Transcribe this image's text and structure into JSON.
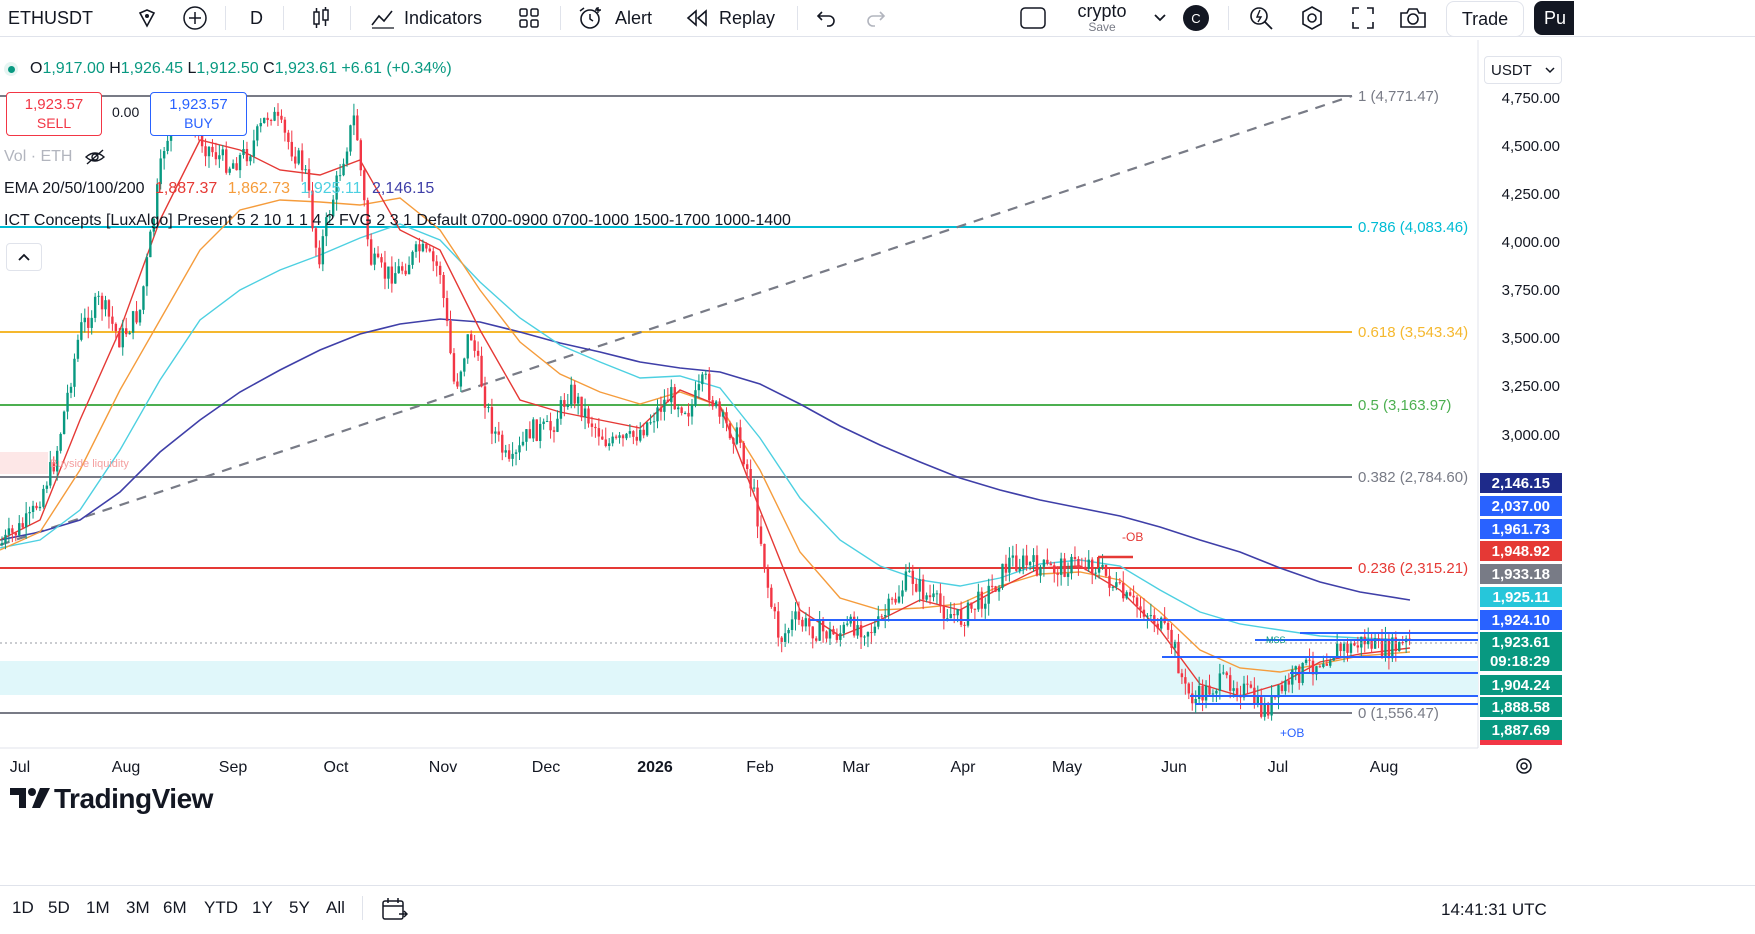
{
  "toolbar": {
    "symbol": "ETHUSDT",
    "interval": "D",
    "indicators_label": "Indicators",
    "alert_label": "Alert",
    "replay_label": "Replay",
    "layout_name": "crypto",
    "layout_save": "Save",
    "avatar_letter": "C",
    "trade_label": "Trade",
    "publish_label": "Pu"
  },
  "legend": {
    "o_label": "O",
    "o_val": "1,917.00",
    "h_label": "H",
    "h_val": "1,926.45",
    "l_label": "L",
    "l_val": "1,912.50",
    "c_label": "C",
    "c_val": "1,923.61",
    "change": "+6.61 (+0.34%)",
    "sell_price": "1,923.57",
    "sell_label": "SELL",
    "spread": "0.00",
    "buy_price": "1,923.57",
    "buy_label": "BUY",
    "vol": "Vol · ETH",
    "ema_name": "EMA 20/50/100/200",
    "ema20": "1,887.37",
    "ema50": "1,862.73",
    "ema100": "1,925.11",
    "ema200": "2,146.15",
    "ict": "ICT Concepts [LuxAlgo] Present 5 2 10 1 1 4 2 FVG 2 3 1 Default 0700-0900 0700-1000 1500-1700 1000-1400"
  },
  "currency": "USDT",
  "price_axis": [
    "4,750.00",
    "4,500.00",
    "4,250.00",
    "4,000.00",
    "3,750.00",
    "3,500.00",
    "3,250.00",
    "3,000.00"
  ],
  "fib_labels": [
    {
      "text": "1 (4,771.47)",
      "color": "#787b86"
    },
    {
      "text": "0.786 (4,083.46)",
      "color": "#00bcd4"
    },
    {
      "text": "0.618 (3,543.34)",
      "color": "#f5b82e"
    },
    {
      "text": "0.5 (3,163.97)",
      "color": "#4caf50"
    },
    {
      "text": "0.382 (2,784.60)",
      "color": "#787b86"
    },
    {
      "text": "0.236 (2,315.21)",
      "color": "#e53935"
    },
    {
      "text": "0 (1,556.47)",
      "color": "#787b86"
    }
  ],
  "price_badges": [
    {
      "text": "2,146.15",
      "bg": "#1e2a8a",
      "fg": "#ffffff"
    },
    {
      "text": "2,037.00",
      "bg": "#2962ff",
      "fg": "#ffffff"
    },
    {
      "text": "1,961.73",
      "bg": "#2962ff",
      "fg": "#ffffff"
    },
    {
      "text": "1,948.92",
      "bg": "#e53935",
      "fg": "#ffffff"
    },
    {
      "text": "1,933.18",
      "bg": "#787b86",
      "fg": "#ffffff"
    },
    {
      "text": "1,925.11",
      "bg": "#26c6da",
      "fg": "#ffffff"
    },
    {
      "text": "1,924.10",
      "bg": "#2962ff",
      "fg": "#ffffff"
    },
    {
      "text": "1,923.61",
      "bg": "#089981",
      "fg": "#ffffff"
    },
    {
      "text": "09:18:29",
      "bg": "#089981",
      "fg": "#ffffff"
    },
    {
      "text": "1,904.24",
      "bg": "#089981",
      "fg": "#ffffff"
    },
    {
      "text": "1,888.58",
      "bg": "#089981",
      "fg": "#ffffff"
    },
    {
      "text": "1,887.69",
      "bg": "#089981",
      "fg": "#ffffff"
    }
  ],
  "chart_labels": {
    "ob_minus": "-OB",
    "ob_plus": "+OB",
    "mss": "MSS",
    "buyside": "Buyside liquidity"
  },
  "time_axis": [
    "Jul",
    "Aug",
    "Sep",
    "Oct",
    "Nov",
    "Dec",
    "2026",
    "Feb",
    "Mar",
    "Apr",
    "May",
    "Jun",
    "Jul",
    "Aug"
  ],
  "timeframes": [
    "1D",
    "5D",
    "1M",
    "3M",
    "6M",
    "YTD",
    "1Y",
    "5Y",
    "All"
  ],
  "clock": "14:41:31 UTC",
  "logo": "TradingView",
  "colors": {
    "up": "#089981",
    "down": "#f23645",
    "ema20": "#e53935",
    "ema50": "#f59c3c",
    "ema100": "#4dd0e1",
    "ema200": "#3f3fa8"
  }
}
